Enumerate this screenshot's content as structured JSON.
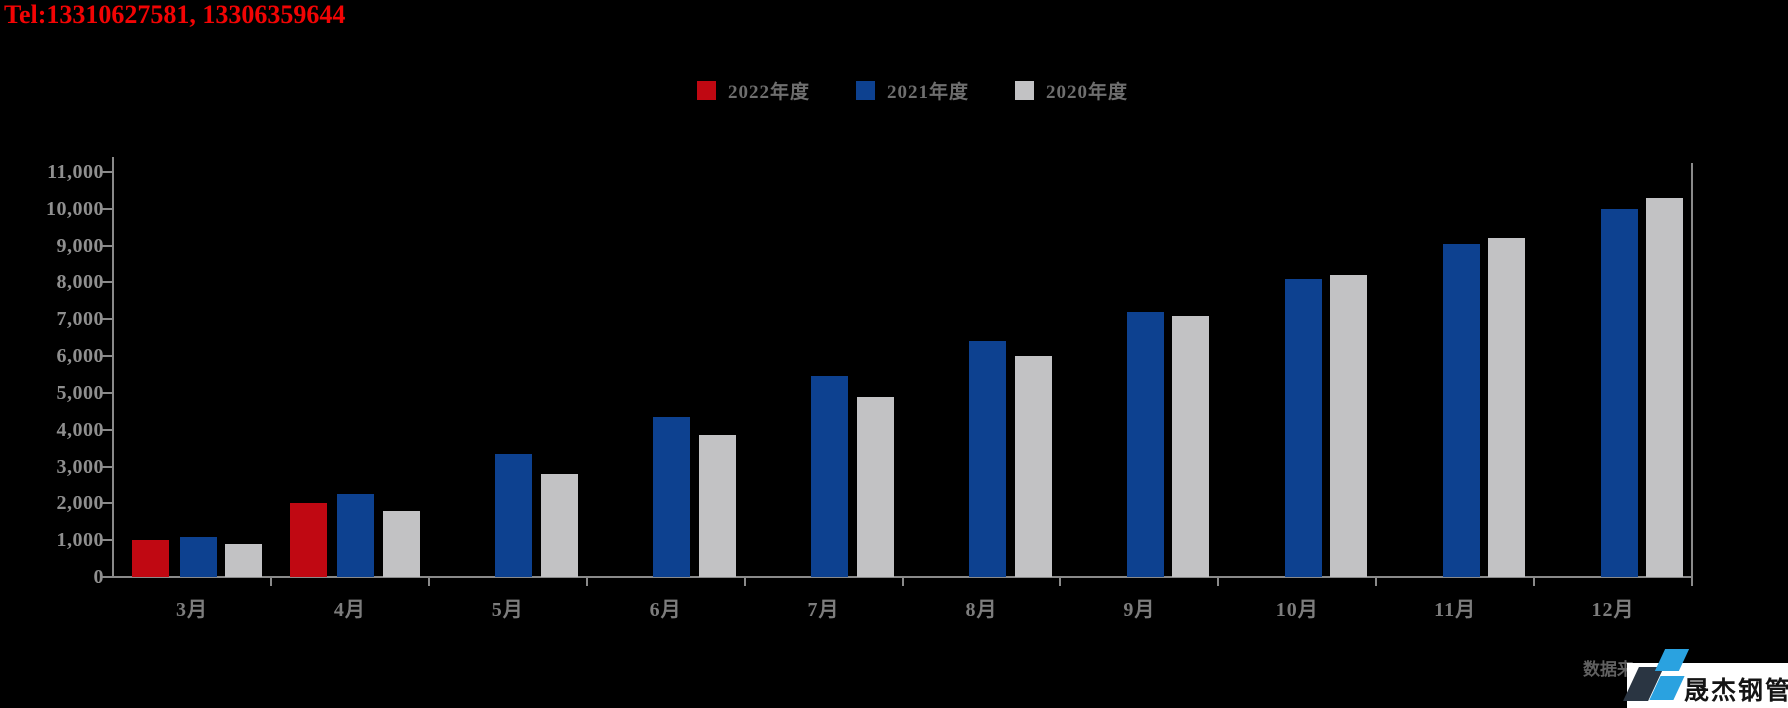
{
  "header": {
    "tel": "Tel:13310627581, 13306359644"
  },
  "chart_data": {
    "type": "bar",
    "categories": [
      "3月",
      "4月",
      "5月",
      "6月",
      "7月",
      "8月",
      "9月",
      "10月",
      "11月",
      "12月"
    ],
    "series": [
      {
        "name": "2022年度",
        "color": "#c00812",
        "values": [
          1000,
          2000,
          null,
          null,
          null,
          null,
          null,
          null,
          null,
          null
        ]
      },
      {
        "name": "2021年度",
        "color": "#0d4190",
        "values": [
          1100,
          2250,
          3350,
          4350,
          5450,
          6400,
          7200,
          8100,
          9050,
          10000
        ]
      },
      {
        "name": "2020年度",
        "color": "#c2c2c4",
        "values": [
          900,
          1800,
          2800,
          3850,
          4900,
          6000,
          7100,
          8200,
          9200,
          10300
        ]
      }
    ],
    "ylim": [
      0,
      11000
    ],
    "ytick_step": 1000,
    "ytick_labels": [
      "0",
      "1,000",
      "2,000",
      "3,000",
      "4,000",
      "5,000",
      "6,000",
      "7,000",
      "8,000",
      "9,000",
      "10,000",
      "11,000"
    ],
    "xlabel": "",
    "ylabel": "",
    "title": "",
    "grid": false,
    "legend_position": "top-center",
    "background": "#000000",
    "axis_color": "#8a8a8a"
  },
  "footer": {
    "source_text": "数据来",
    "logo_text": "晟杰钢管"
  }
}
